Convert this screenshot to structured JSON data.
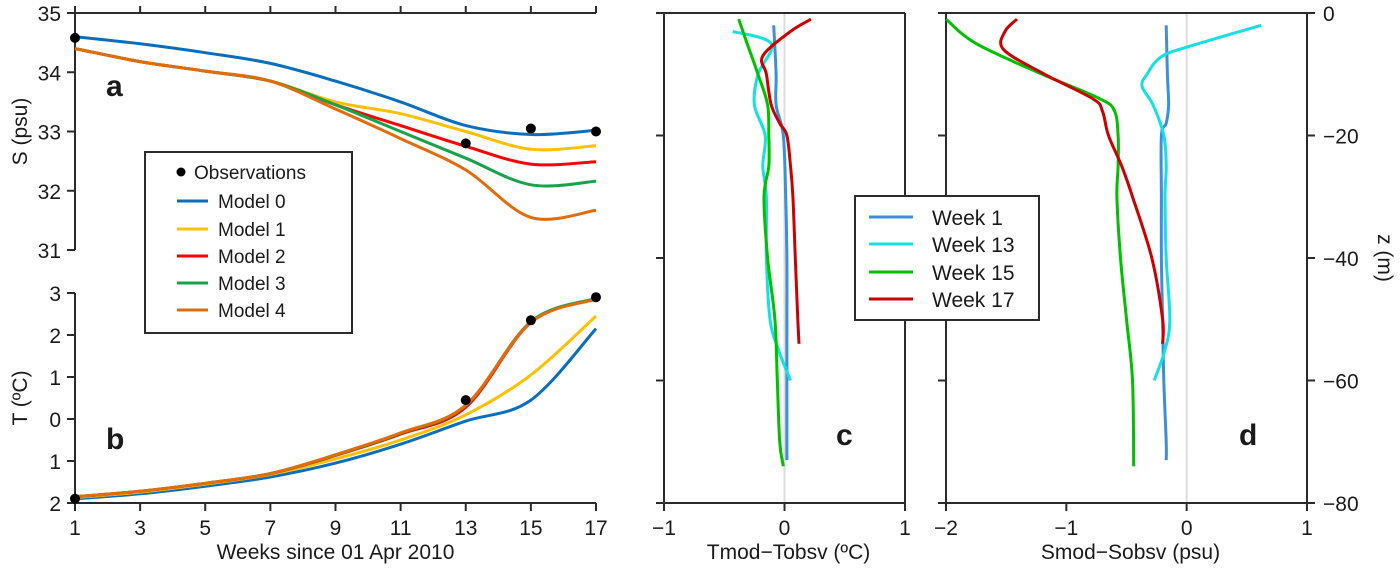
{
  "chart_data": [
    {
      "id": "a",
      "type": "line",
      "panel_letter": "a",
      "title": "",
      "xlabel": "",
      "ylabel": "S (psu)",
      "xlim": [
        1,
        17
      ],
      "ylim": [
        31,
        35
      ],
      "x_ticks": [
        1,
        3,
        5,
        7,
        9,
        11,
        13,
        15,
        17
      ],
      "y_ticks": [
        31,
        32,
        33,
        34,
        35
      ],
      "y_tick_labels": [
        "31",
        "32",
        "33",
        "34",
        "35"
      ],
      "grid": false,
      "x": [
        1,
        3,
        5,
        7,
        9,
        11,
        13,
        15,
        17
      ],
      "series": [
        {
          "name": "Model 0",
          "color": "#0a6ebd",
          "values": [
            34.6,
            34.48,
            34.33,
            34.15,
            33.85,
            33.5,
            33.1,
            32.95,
            33.02
          ]
        },
        {
          "name": "Model 1",
          "color": "#ffc000",
          "values": [
            34.4,
            34.18,
            34.02,
            33.85,
            33.5,
            33.3,
            33.0,
            32.7,
            32.76
          ]
        },
        {
          "name": "Model 2",
          "color": "#ff0000",
          "values": [
            34.4,
            34.18,
            34.02,
            33.85,
            33.45,
            33.1,
            32.75,
            32.45,
            32.49
          ]
        },
        {
          "name": "Model 3",
          "color": "#16a34a",
          "values": [
            34.4,
            34.18,
            34.02,
            33.85,
            33.45,
            33.0,
            32.55,
            32.1,
            32.16
          ]
        },
        {
          "name": "Model 4",
          "color": "#e36c0a",
          "values": [
            34.4,
            34.18,
            34.02,
            33.85,
            33.38,
            32.88,
            32.35,
            31.55,
            31.67
          ]
        }
      ],
      "observations": {
        "name": "Observations",
        "x": [
          1,
          13,
          15,
          17
        ],
        "values": [
          34.58,
          32.8,
          33.05,
          33.0
        ]
      },
      "legend": {
        "placement": "center-left",
        "entries": [
          "Observations",
          "Model 0",
          "Model 1",
          "Model 2",
          "Model 3",
          "Model 4"
        ]
      }
    },
    {
      "id": "b",
      "type": "line",
      "panel_letter": "b",
      "title": "",
      "xlabel": "Weeks since 01 Apr 2010",
      "ylabel": "T (ºC)",
      "xlim": [
        1,
        17
      ],
      "ylim": [
        -2,
        3
      ],
      "x_ticks": [
        1,
        3,
        5,
        7,
        9,
        11,
        13,
        15,
        17
      ],
      "x_tick_labels": [
        "1",
        "3",
        "5",
        "7",
        "9",
        "11",
        "13",
        "15",
        "17"
      ],
      "y_ticks": [
        -2,
        -1,
        0,
        1,
        2,
        3
      ],
      "y_tick_labels": [
        "2",
        "1",
        "0",
        "1",
        "2",
        "3"
      ],
      "grid": false,
      "x": [
        1,
        3,
        5,
        7,
        9,
        11,
        13,
        15,
        17
      ],
      "series": [
        {
          "name": "Model 0",
          "color": "#0a6ebd",
          "values": [
            -1.9,
            -1.78,
            -1.6,
            -1.38,
            -1.05,
            -0.6,
            -0.05,
            0.45,
            2.15
          ]
        },
        {
          "name": "Model 1",
          "color": "#ffc000",
          "values": [
            -1.87,
            -1.74,
            -1.55,
            -1.32,
            -0.95,
            -0.5,
            0.1,
            1.05,
            2.45
          ]
        },
        {
          "name": "Model 2",
          "color": "#ff0000",
          "values": [
            -1.85,
            -1.72,
            -1.53,
            -1.3,
            -0.87,
            -0.36,
            0.28,
            2.3,
            2.87
          ]
        },
        {
          "name": "Model 3",
          "color": "#16a34a",
          "values": [
            -1.85,
            -1.72,
            -1.53,
            -1.3,
            -0.86,
            -0.34,
            0.32,
            2.32,
            2.87
          ]
        },
        {
          "name": "Model 4",
          "color": "#e36c0a",
          "values": [
            -1.85,
            -1.72,
            -1.53,
            -1.3,
            -0.85,
            -0.33,
            0.33,
            2.3,
            2.85
          ]
        }
      ],
      "observations": {
        "name": "Observations",
        "x": [
          1,
          13,
          15,
          17
        ],
        "values": [
          -1.9,
          0.45,
          2.35,
          2.9
        ]
      }
    },
    {
      "id": "c",
      "type": "line",
      "panel_letter": "c",
      "title": "",
      "xlabel": "Tmod−Tobsv (ºC)",
      "ylabel": "",
      "xlim": [
        -1,
        1
      ],
      "ylim": [
        -80,
        0
      ],
      "x_ticks": [
        -1,
        0,
        1
      ],
      "x_tick_labels": [
        "−1",
        "0",
        "1"
      ],
      "y_ticks": [
        -80,
        -60,
        -40,
        -20,
        0
      ],
      "grid": false,
      "zero_line": true,
      "series": [
        {
          "name": "Week 1",
          "color": "#3b8fde",
          "z": [
            -2,
            -10,
            -15,
            -20,
            -30,
            -40,
            -50,
            -60,
            -70,
            -73
          ],
          "values": [
            -0.09,
            -0.07,
            -0.07,
            -0.01,
            0.01,
            0.02,
            0.02,
            0.02,
            0.02,
            0.02
          ]
        },
        {
          "name": "Week 13",
          "color": "#16e0e0",
          "z": [
            -3,
            -5,
            -10,
            -15,
            -20,
            -25,
            -30,
            -40,
            -50,
            -55,
            -60
          ],
          "values": [
            -0.43,
            -0.11,
            -0.22,
            -0.25,
            -0.16,
            -0.18,
            -0.15,
            -0.15,
            -0.12,
            -0.05,
            0.05
          ]
        },
        {
          "name": "Week 15",
          "color": "#00c000",
          "z": [
            -1,
            -5,
            -10,
            -15,
            -20,
            -25,
            -30,
            -40,
            -50,
            -60,
            -70,
            -74
          ],
          "values": [
            -0.38,
            -0.31,
            -0.22,
            -0.14,
            -0.13,
            -0.13,
            -0.17,
            -0.14,
            -0.08,
            -0.06,
            -0.04,
            -0.01
          ]
        },
        {
          "name": "Week 17",
          "color": "#cc0000",
          "z": [
            -1,
            -3,
            -7,
            -10,
            -15,
            -18,
            -20,
            -25,
            -30,
            -40,
            -50,
            -54
          ],
          "values": [
            0.22,
            0.05,
            -0.18,
            -0.15,
            -0.11,
            -0.04,
            0.02,
            0.05,
            0.07,
            0.09,
            0.11,
            0.12
          ]
        }
      ],
      "legend": {
        "placement": "top-right",
        "entries": [
          "Week 1",
          "Week 13",
          "Week 15",
          "Week 17"
        ]
      }
    },
    {
      "id": "d",
      "type": "line",
      "panel_letter": "d",
      "title": "",
      "xlabel": "Smod−Sobsv (psu)",
      "ylabel": "z (m)",
      "xlim": [
        -2,
        1
      ],
      "ylim": [
        -80,
        0
      ],
      "x_ticks": [
        -2,
        -1,
        0,
        1
      ],
      "x_tick_labels": [
        "−2",
        "−1",
        "0",
        "1"
      ],
      "y_ticks": [
        0,
        -20,
        -40,
        -60,
        -80
      ],
      "y_tick_labels": [
        "0",
        "−20",
        "−40",
        "−60",
        "−80"
      ],
      "grid": false,
      "zero_line": true,
      "series": [
        {
          "name": "Week 1",
          "color": "#3b8fde",
          "z": [
            -2,
            -10,
            -15,
            -18,
            -20,
            -30,
            -40,
            -50,
            -60,
            -70,
            -73
          ],
          "values": [
            -0.17,
            -0.16,
            -0.15,
            -0.17,
            -0.21,
            -0.21,
            -0.21,
            -0.2,
            -0.19,
            -0.17,
            -0.17
          ]
        },
        {
          "name": "Week 13",
          "color": "#16e0e0",
          "z": [
            -2,
            -5,
            -7,
            -10,
            -12,
            -15,
            -20,
            -25,
            -30,
            -40,
            -50,
            -55,
            -60
          ],
          "values": [
            0.62,
            0.1,
            -0.2,
            -0.33,
            -0.37,
            -0.28,
            -0.19,
            -0.17,
            -0.18,
            -0.17,
            -0.14,
            -0.18,
            -0.27
          ]
        },
        {
          "name": "Week 15",
          "color": "#00c000",
          "z": [
            -1,
            -5,
            -10,
            -14,
            -16,
            -20,
            -25,
            -30,
            -40,
            -50,
            -60,
            -74
          ],
          "values": [
            -2.0,
            -1.75,
            -1.2,
            -0.72,
            -0.6,
            -0.57,
            -0.57,
            -0.58,
            -0.55,
            -0.5,
            -0.45,
            -0.44
          ]
        },
        {
          "name": "Week 17",
          "color": "#cc0000",
          "z": [
            -1,
            -3,
            -6,
            -10,
            -14,
            -16,
            -20,
            -25,
            -30,
            -40,
            -50,
            -54
          ],
          "values": [
            -1.41,
            -1.51,
            -1.52,
            -1.18,
            -0.78,
            -0.7,
            -0.65,
            -0.54,
            -0.45,
            -0.29,
            -0.2,
            -0.2
          ]
        }
      ]
    }
  ]
}
